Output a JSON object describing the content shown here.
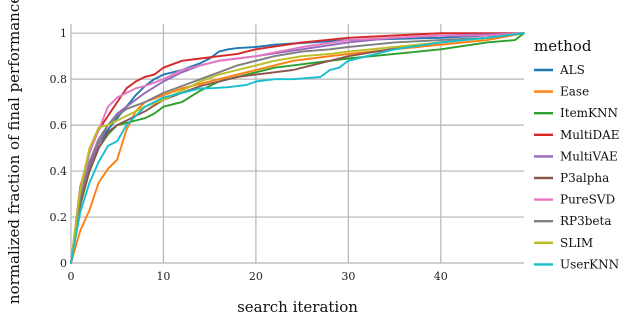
{
  "chart_data": {
    "type": "line",
    "xlabel": "search iteration",
    "ylabel": "normalized fraction of final performance",
    "xlim": [
      0,
      49
    ],
    "ylim": [
      0,
      1.04
    ],
    "xticks": [
      0,
      10,
      20,
      30,
      40
    ],
    "yticks": [
      0,
      0.2,
      0.4,
      0.6,
      0.8,
      1
    ],
    "ytick_labels": [
      "0",
      "0.2",
      "0.4",
      "0.6",
      "0.8",
      "1"
    ],
    "grid": true,
    "legend": {
      "title": "method",
      "placement": "right"
    },
    "series": [
      {
        "name": "ALS",
        "color": "#1f77b4",
        "x": [
          0,
          1,
          2,
          3,
          4,
          5,
          6,
          7,
          8,
          9,
          10,
          12,
          14,
          15,
          16,
          17,
          18,
          20,
          22,
          24,
          26,
          28,
          30,
          35,
          40,
          45,
          49
        ],
        "y": [
          0,
          0.28,
          0.44,
          0.52,
          0.58,
          0.63,
          0.68,
          0.73,
          0.77,
          0.8,
          0.82,
          0.84,
          0.87,
          0.89,
          0.92,
          0.93,
          0.935,
          0.94,
          0.95,
          0.955,
          0.96,
          0.965,
          0.97,
          0.975,
          0.98,
          0.99,
          1.0
        ]
      },
      {
        "name": "Ease",
        "color": "#ff7f0e",
        "x": [
          0,
          1,
          2,
          3,
          4,
          5,
          6,
          7,
          8,
          10,
          12,
          14,
          16,
          18,
          20,
          22,
          24,
          26,
          28,
          30,
          35,
          40,
          45,
          49
        ],
        "y": [
          0,
          0.14,
          0.23,
          0.35,
          0.41,
          0.45,
          0.58,
          0.66,
          0.7,
          0.73,
          0.76,
          0.78,
          0.8,
          0.82,
          0.84,
          0.86,
          0.88,
          0.89,
          0.9,
          0.91,
          0.93,
          0.95,
          0.97,
          1.0
        ]
      },
      {
        "name": "ItemKNN",
        "color": "#2ca02c",
        "x": [
          0,
          1,
          2,
          3,
          4,
          5,
          6,
          7,
          8,
          9,
          10,
          12,
          14,
          16,
          18,
          20,
          22,
          24,
          26,
          28,
          30,
          35,
          40,
          45,
          48,
          49
        ],
        "y": [
          0,
          0.25,
          0.4,
          0.5,
          0.56,
          0.6,
          0.61,
          0.62,
          0.63,
          0.65,
          0.68,
          0.7,
          0.75,
          0.79,
          0.81,
          0.83,
          0.85,
          0.86,
          0.87,
          0.88,
          0.89,
          0.91,
          0.93,
          0.96,
          0.97,
          1.0
        ]
      },
      {
        "name": "MultiDAE",
        "color": "#d62728",
        "x": [
          0,
          1,
          2,
          3,
          4,
          5,
          6,
          7,
          8,
          9,
          10,
          12,
          14,
          16,
          18,
          20,
          25,
          30,
          35,
          40,
          49
        ],
        "y": [
          0,
          0.33,
          0.48,
          0.58,
          0.64,
          0.7,
          0.76,
          0.79,
          0.81,
          0.82,
          0.85,
          0.88,
          0.89,
          0.9,
          0.91,
          0.93,
          0.96,
          0.98,
          0.99,
          1.0,
          1.0
        ]
      },
      {
        "name": "MultiVAE",
        "color": "#9467bd",
        "x": [
          0,
          1,
          2,
          3,
          4,
          5,
          6,
          7,
          8,
          10,
          12,
          14,
          16,
          18,
          20,
          25,
          30,
          35,
          40,
          45,
          49
        ],
        "y": [
          0,
          0.27,
          0.42,
          0.52,
          0.6,
          0.65,
          0.68,
          0.71,
          0.74,
          0.79,
          0.83,
          0.86,
          0.88,
          0.89,
          0.9,
          0.93,
          0.96,
          0.98,
          0.99,
          0.995,
          1.0
        ]
      },
      {
        "name": "P3alpha",
        "color": "#8c564b",
        "x": [
          0,
          1,
          2,
          3,
          4,
          5,
          6,
          8,
          10,
          12,
          14,
          16,
          18,
          20,
          22,
          24,
          26,
          28,
          30,
          33,
          36,
          40,
          45,
          49
        ],
        "y": [
          0,
          0.26,
          0.4,
          0.5,
          0.57,
          0.6,
          0.62,
          0.66,
          0.71,
          0.74,
          0.77,
          0.79,
          0.81,
          0.82,
          0.83,
          0.84,
          0.86,
          0.88,
          0.9,
          0.92,
          0.94,
          0.96,
          0.98,
          1.0
        ]
      },
      {
        "name": "PureSVD",
        "color": "#e377c2",
        "x": [
          0,
          1,
          2,
          3,
          4,
          5,
          6,
          7,
          8,
          10,
          12,
          14,
          16,
          18,
          20,
          25,
          30,
          35,
          40,
          45,
          49
        ],
        "y": [
          0,
          0.3,
          0.48,
          0.58,
          0.68,
          0.72,
          0.74,
          0.76,
          0.77,
          0.8,
          0.84,
          0.86,
          0.88,
          0.89,
          0.9,
          0.94,
          0.97,
          0.98,
          0.99,
          0.99,
          1.0
        ]
      },
      {
        "name": "RP3beta",
        "color": "#7f7f7f",
        "x": [
          0,
          1,
          2,
          3,
          4,
          5,
          6,
          8,
          10,
          12,
          14,
          16,
          18,
          20,
          22,
          25,
          28,
          30,
          35,
          40,
          45,
          49
        ],
        "y": [
          0,
          0.28,
          0.44,
          0.54,
          0.6,
          0.64,
          0.67,
          0.7,
          0.74,
          0.77,
          0.8,
          0.83,
          0.86,
          0.88,
          0.9,
          0.92,
          0.93,
          0.94,
          0.96,
          0.97,
          0.98,
          1.0
        ]
      },
      {
        "name": "SLIM",
        "color": "#bcbd22",
        "x": [
          0,
          1,
          2,
          3,
          4,
          5,
          6,
          8,
          10,
          12,
          14,
          16,
          18,
          20,
          22,
          25,
          28,
          30,
          35,
          40,
          45,
          49
        ],
        "y": [
          0,
          0.32,
          0.5,
          0.59,
          0.6,
          0.62,
          0.64,
          0.68,
          0.71,
          0.75,
          0.79,
          0.82,
          0.84,
          0.86,
          0.88,
          0.9,
          0.91,
          0.92,
          0.94,
          0.96,
          0.98,
          1.0
        ]
      },
      {
        "name": "UserKNN",
        "color": "#17becf",
        "x": [
          0,
          1,
          2,
          3,
          4,
          5,
          6,
          8,
          10,
          12,
          14,
          15,
          17,
          19,
          20,
          22,
          24,
          27,
          28,
          29,
          30,
          32,
          35,
          40,
          45,
          49
        ],
        "y": [
          0,
          0.22,
          0.35,
          0.44,
          0.51,
          0.53,
          0.6,
          0.68,
          0.72,
          0.74,
          0.76,
          0.76,
          0.765,
          0.775,
          0.79,
          0.8,
          0.8,
          0.81,
          0.84,
          0.85,
          0.88,
          0.9,
          0.93,
          0.96,
          0.98,
          1.0
        ]
      }
    ]
  }
}
